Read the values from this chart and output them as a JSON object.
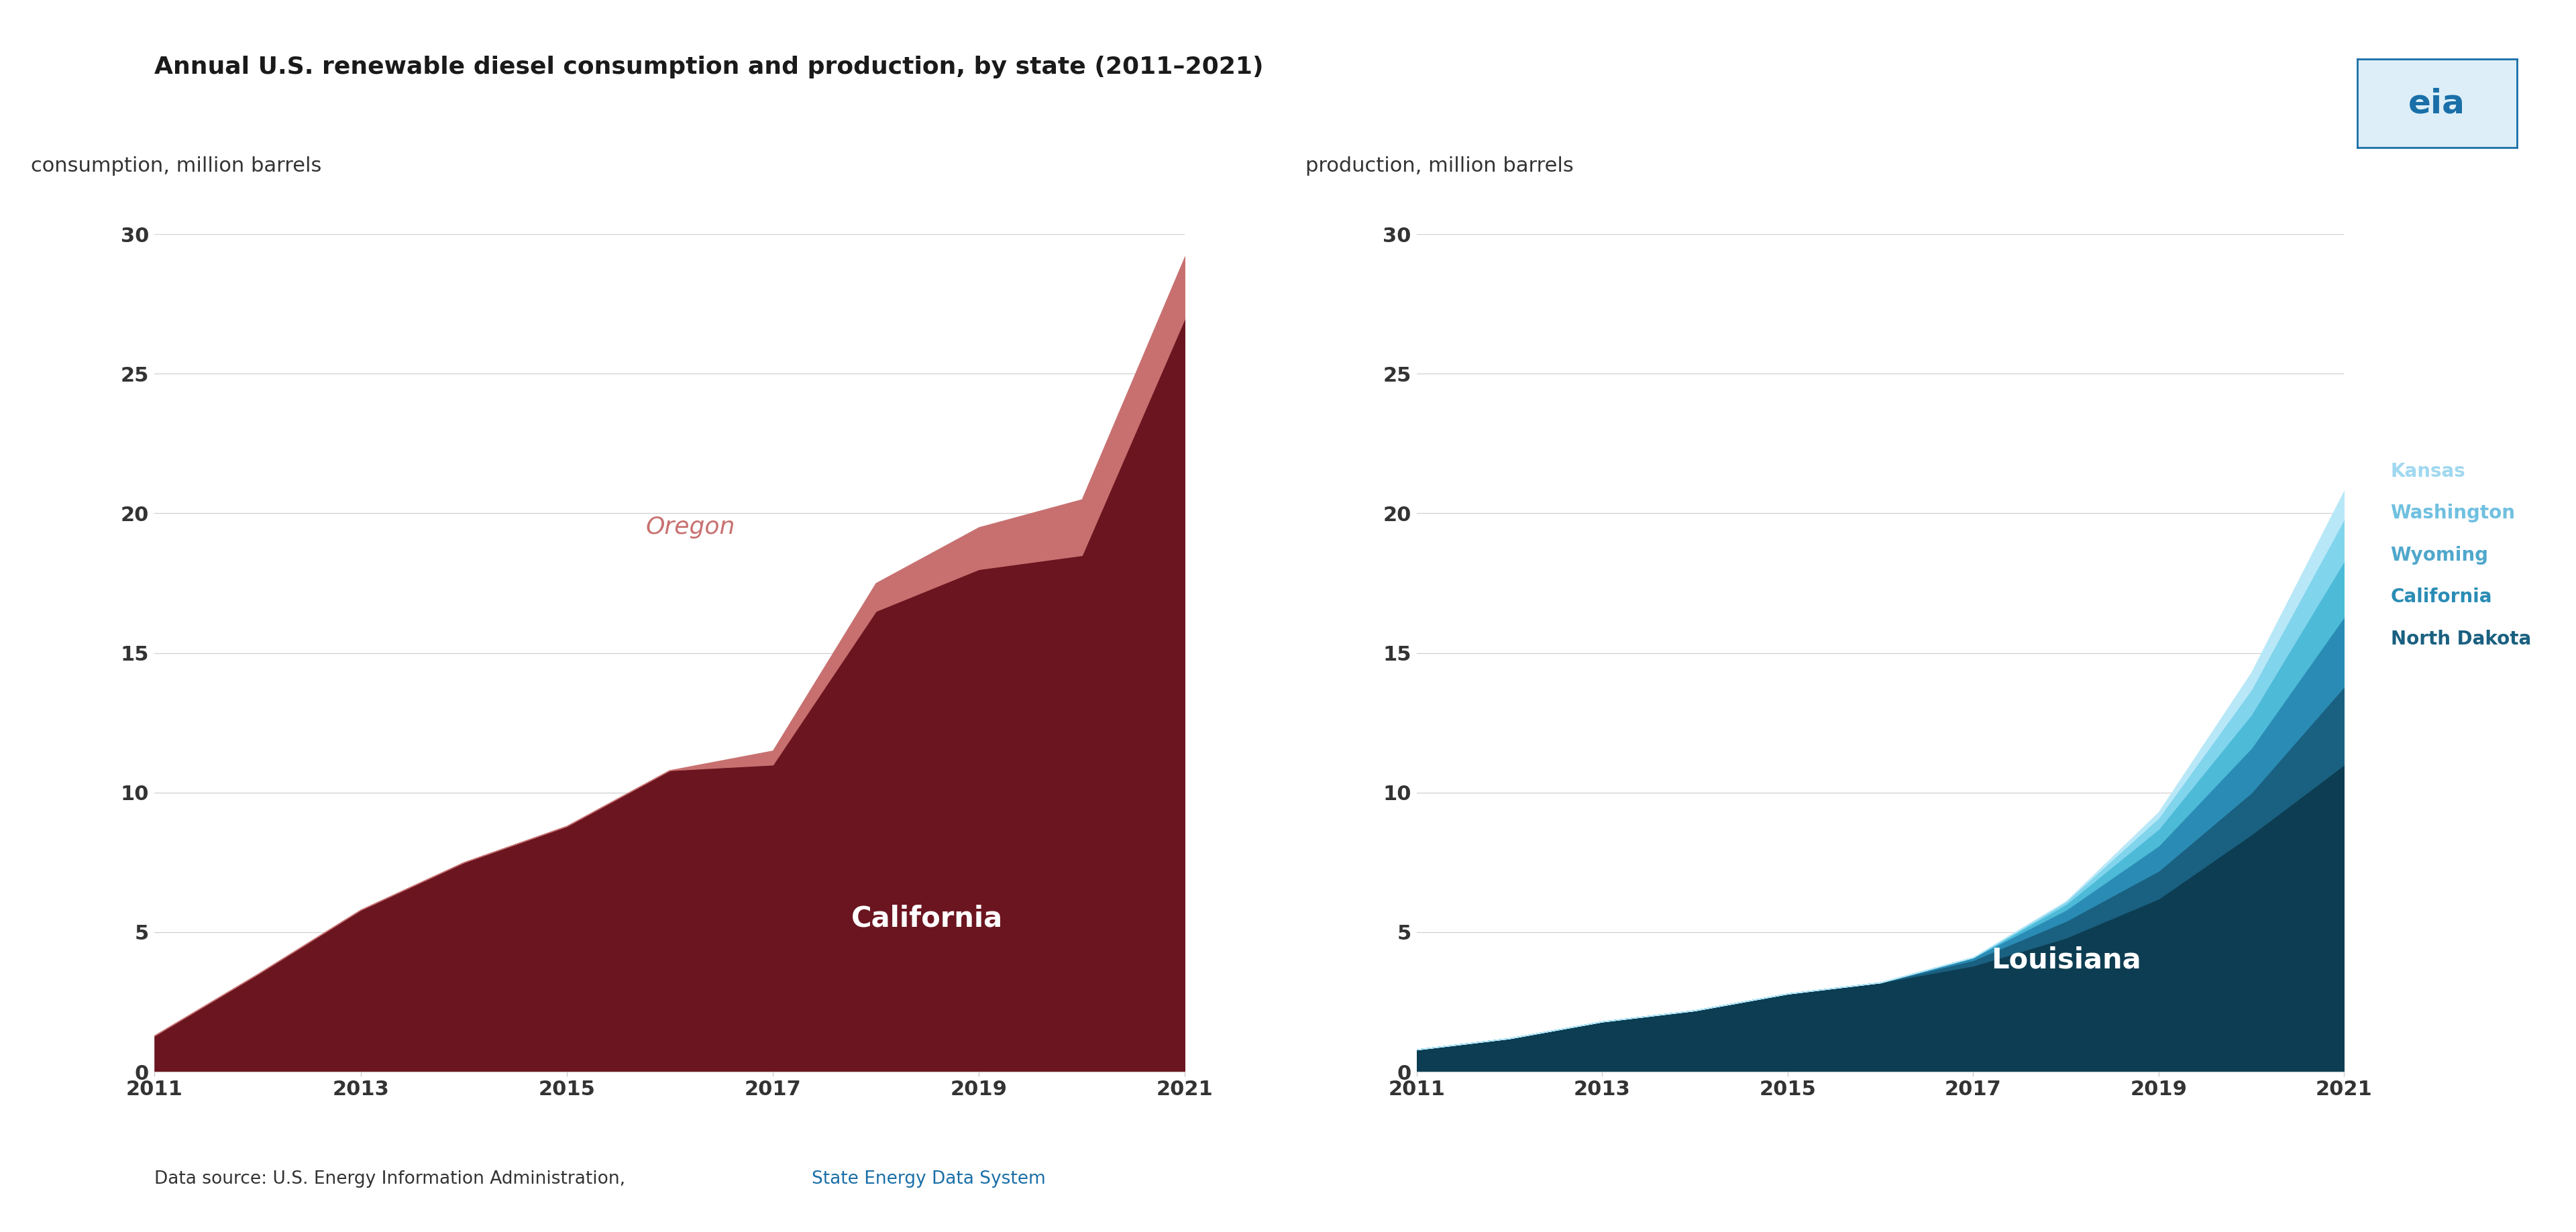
{
  "title": "Annual U.S. renewable diesel consumption and production, by state (2011–2021)",
  "left_ylabel": "consumption, million barrels",
  "right_ylabel": "production, million barrels",
  "years": [
    2011,
    2012,
    2013,
    2014,
    2015,
    2016,
    2017,
    2018,
    2019,
    2020,
    2021
  ],
  "ylim": [
    0,
    30
  ],
  "yticks": [
    0,
    5,
    10,
    15,
    20,
    25,
    30
  ],
  "consumption_california": [
    1.3,
    3.5,
    5.8,
    7.5,
    8.8,
    10.8,
    11.0,
    16.5,
    18.0,
    18.5,
    27.0
  ],
  "consumption_oregon": [
    0.0,
    0.0,
    0.0,
    0.0,
    0.0,
    0.0,
    0.5,
    1.0,
    1.5,
    2.0,
    2.2
  ],
  "production_louisiana": [
    0.8,
    1.2,
    1.8,
    2.2,
    2.8,
    3.2,
    3.8,
    4.8,
    6.2,
    8.5,
    11.0
  ],
  "production_north_dakota": [
    0.0,
    0.0,
    0.0,
    0.0,
    0.0,
    0.0,
    0.2,
    0.6,
    1.0,
    1.5,
    2.8
  ],
  "production_california": [
    0.0,
    0.0,
    0.0,
    0.0,
    0.0,
    0.0,
    0.1,
    0.4,
    0.9,
    1.6,
    2.5
  ],
  "production_wyoming": [
    0.0,
    0.0,
    0.0,
    0.0,
    0.0,
    0.0,
    0.0,
    0.2,
    0.6,
    1.2,
    2.0
  ],
  "production_washington": [
    0.0,
    0.0,
    0.0,
    0.0,
    0.0,
    0.0,
    0.0,
    0.1,
    0.4,
    0.9,
    1.5
  ],
  "production_kansas": [
    0.0,
    0.0,
    0.0,
    0.0,
    0.0,
    0.0,
    0.0,
    0.0,
    0.2,
    0.6,
    1.0
  ],
  "color_california_cons": "#6b1520",
  "color_oregon_cons": "#c87070",
  "color_louisiana": "#0d3d52",
  "color_north_dakota": "#1a6080",
  "color_california_prod": "#2a8cb5",
  "color_wyoming": "#4dbad8",
  "color_washington": "#80d4ec",
  "color_kansas": "#b8e8f8",
  "label_kansas_color": "#a0d8f0",
  "label_washington_color": "#70c0e0",
  "label_wyoming_color": "#50a8cc",
  "label_california_color": "#2a8cb5",
  "label_north_dakota_color": "#1a6080",
  "bg_color": "#ffffff",
  "grid_color": "#d0d0d0",
  "title_color": "#1a1a1a",
  "source_text": "Data source: U.S. Energy Information Administration, ",
  "source_link": "State Energy Data System"
}
